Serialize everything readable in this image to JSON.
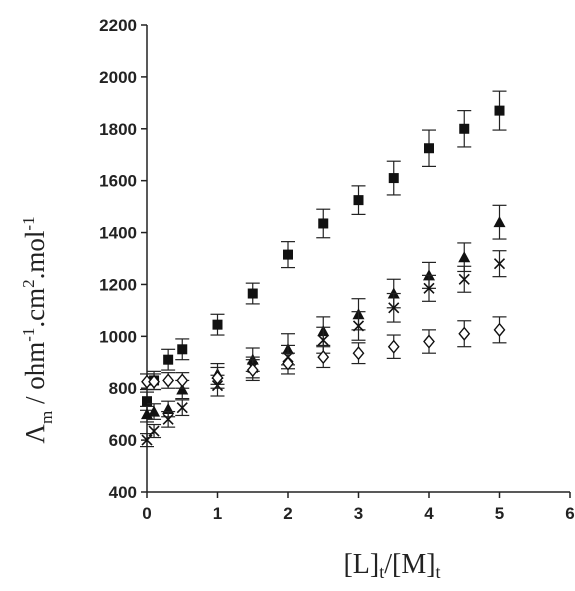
{
  "chart_data": {
    "type": "scatter",
    "title": "",
    "xlabel": "[L]t/[M]t",
    "ylabel": "Λm / ohm-1.cm2.mol-1",
    "xlim": [
      0,
      6
    ],
    "ylim": [
      400,
      2200
    ],
    "xticks": [
      0,
      1,
      2,
      3,
      4,
      5,
      6
    ],
    "yticks": [
      400,
      600,
      800,
      1000,
      1200,
      1400,
      1600,
      1800,
      2000,
      2200
    ],
    "error_bars": true,
    "grid": false,
    "legend": "none",
    "series": [
      {
        "marker": "square",
        "x": [
          0,
          0.1,
          0.3,
          0.5,
          1,
          1.5,
          2,
          2.5,
          3,
          3.5,
          4,
          4.5,
          5
        ],
        "y": [
          750,
          830,
          910,
          950,
          1045,
          1165,
          1315,
          1435,
          1525,
          1610,
          1725,
          1800,
          1870
        ],
        "error": [
          35,
          35,
          40,
          40,
          40,
          40,
          50,
          55,
          55,
          65,
          70,
          70,
          75
        ]
      },
      {
        "marker": "triangle",
        "x": [
          0,
          0.1,
          0.3,
          0.5,
          1,
          1.5,
          2,
          2.5,
          3,
          3.5,
          4,
          4.5,
          5
        ],
        "y": [
          700,
          710,
          720,
          795,
          855,
          910,
          950,
          1020,
          1085,
          1165,
          1235,
          1305,
          1440
        ],
        "error": [
          30,
          30,
          30,
          35,
          40,
          45,
          60,
          55,
          60,
          55,
          50,
          55,
          65
        ]
      },
      {
        "marker": "cross",
        "x": [
          0,
          0.1,
          0.3,
          0.5,
          1,
          1.5,
          2,
          2.5,
          3,
          3.5,
          4,
          4.5,
          5
        ],
        "y": [
          600,
          635,
          680,
          725,
          810,
          880,
          920,
          985,
          1040,
          1110,
          1185,
          1220,
          1280
        ],
        "error": [
          25,
          25,
          30,
          30,
          40,
          40,
          45,
          50,
          55,
          55,
          50,
          50,
          50
        ]
      },
      {
        "marker": "open-diamond",
        "x": [
          0,
          0.1,
          0.3,
          0.5,
          1,
          1.5,
          2,
          2.5,
          3,
          3.5,
          4,
          4.5,
          5
        ],
        "y": [
          825,
          825,
          830,
          830,
          840,
          870,
          895,
          920,
          935,
          960,
          980,
          1010,
          1025
        ],
        "error": [
          30,
          30,
          30,
          30,
          40,
          40,
          40,
          40,
          40,
          45,
          45,
          50,
          50
        ]
      }
    ]
  }
}
